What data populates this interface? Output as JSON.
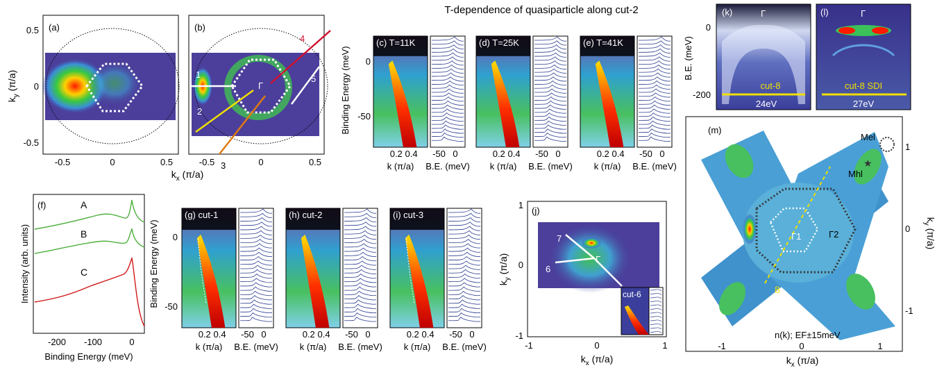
{
  "figure_title": "T-dependence of quasiparticle along cut-2",
  "panels": {
    "a": "(a)",
    "b": "(b)",
    "c": "(c) T=11K",
    "d": "(d) T=25K",
    "e": "(e) T=41K",
    "f": "(f)",
    "g": "(g) cut-1",
    "h": "(h) cut-2",
    "i": "(i) cut-3",
    "j": "(j)",
    "k": "(k)",
    "l": "(l)",
    "m": "(m)"
  },
  "axes": {
    "kx": "kx (π/a)",
    "ky": "ky (π/a)",
    "binding_energy": "Binding Energy (meV)",
    "k": "k (π/a)",
    "be_short": "B.E. (meV)",
    "be_short_k": "B.E. (meV)",
    "intensity": "Intensity (arb. units)",
    "kx_sym": "k",
    "x_sub": "x",
    "y_sub": "y",
    "pia": " (π/a)"
  },
  "ticks": {
    "ab_y": [
      "0.5",
      "0",
      "-0.5"
    ],
    "ab_x": [
      "-0.5",
      "0",
      "0.5"
    ],
    "cde_y": [
      "0",
      "-50"
    ],
    "k_ticks": [
      "0.2",
      "0.4"
    ],
    "be_ticks": [
      "-50",
      "0"
    ],
    "f_x": [
      "-200",
      "-100",
      "0"
    ],
    "j_y": [
      "1",
      "0",
      "-1"
    ],
    "j_x": [
      "-1",
      "0",
      "1"
    ],
    "k_y": [
      "0",
      "-200"
    ],
    "m_x": [
      "-1",
      "0",
      "1"
    ],
    "m_y": [
      "1",
      "0",
      "-1"
    ]
  },
  "cut_labels": [
    "1",
    "2",
    "3",
    "4",
    "5",
    "6",
    "7",
    "8"
  ],
  "gamma": "Γ",
  "gamma1": "Γ1",
  "gamma2": "Γ2",
  "edc_labels": [
    "A",
    "B",
    "C"
  ],
  "j_inset": "cut-6",
  "k_cut": "cut-8",
  "k_energy": "24eV",
  "l_cut": "cut-8 SDI",
  "l_energy": "27eV",
  "m_point_el": "Mel",
  "m_point_hl": "Mhl",
  "m_caption": "n(k); EF±15meV",
  "colors": {
    "map_bg": "#4b3f9b",
    "cut_red": "#d0102c",
    "cut_yellow": "#f0e000",
    "cut_orange": "#e07a10",
    "edc_green": "#4caf3c",
    "edc_red": "#d01818",
    "mdc_blue": "#2a3d8f"
  }
}
